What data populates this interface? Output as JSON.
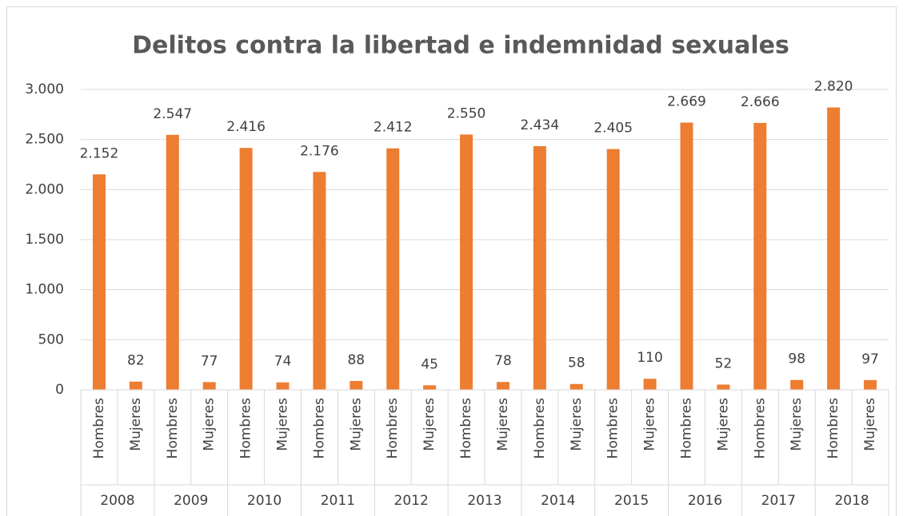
{
  "chart_data": {
    "type": "bar",
    "title": "Delitos contra la libertad e indemnidad sexuales",
    "groups": [
      "2008",
      "2009",
      "2010",
      "2011",
      "2012",
      "2013",
      "2014",
      "2015",
      "2016",
      "2017",
      "2018"
    ],
    "categories": [
      "Hombres",
      "Mujeres",
      "Hombres",
      "Mujeres",
      "Hombres",
      "Mujeres",
      "Hombres",
      "Mujeres",
      "Hombres",
      "Mujeres",
      "Hombres",
      "Mujeres",
      "Hombres",
      "Mujeres",
      "Hombres",
      "Mujeres",
      "Hombres",
      "Mujeres",
      "Hombres",
      "Mujeres",
      "Hombres",
      "Mujeres"
    ],
    "values": [
      2152,
      82,
      2547,
      77,
      2416,
      74,
      2176,
      88,
      2412,
      45,
      2550,
      78,
      2434,
      58,
      2405,
      110,
      2669,
      52,
      2666,
      98,
      2820,
      97
    ],
    "value_labels": [
      "2.152",
      "82",
      "2.547",
      "77",
      "2.416",
      "74",
      "2.176",
      "88",
      "2.412",
      "45",
      "2.550",
      "78",
      "2.434",
      "58",
      "2.405",
      "110",
      "2.669",
      "52",
      "2.666",
      "98",
      "2.820",
      "97"
    ],
    "color": "#ed7d31",
    "ylim": [
      0,
      3000
    ],
    "yticks": [
      0,
      500,
      {
        "value": 1000,
        "label": "1.000"
      },
      {
        "value": 1500,
        "label": "1.500"
      },
      {
        "value": 2000,
        "label": "2.000"
      },
      {
        "value": 2500,
        "label": "2.500"
      },
      {
        "value": 3000,
        "label": "3.000"
      }
    ],
    "grid": true
  }
}
